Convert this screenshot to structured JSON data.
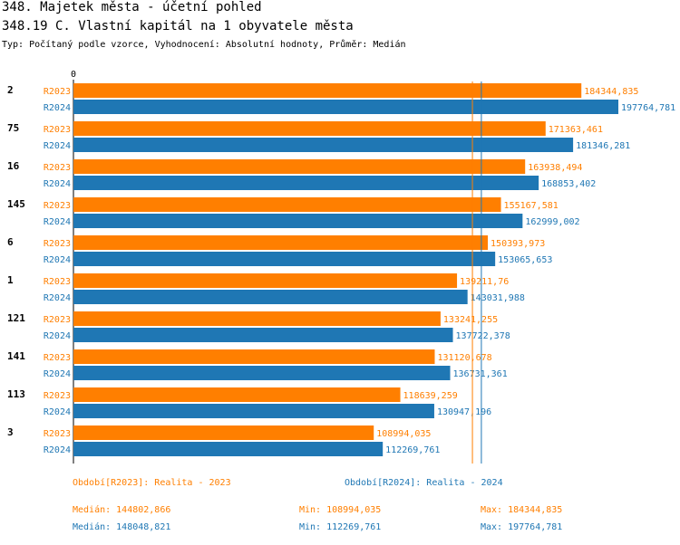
{
  "header": {
    "title": "348. Majetek města - účetní pohled",
    "subtitle": "348.19 C. Vlastní kapitál na 1 obyvatele města",
    "type_line": "Typ: Počítaný podle vzorce, Vyhodnocení: Absolutní hodnoty, Průměr: Medián"
  },
  "colors": {
    "R2023": "#ff7f00",
    "R2024": "#1f77b4"
  },
  "chart_data": {
    "type": "bar",
    "orientation": "horizontal",
    "x_tick_labels": [
      "0"
    ],
    "xlim": [
      0,
      200000
    ],
    "categories": [
      "2",
      "75",
      "16",
      "145",
      "6",
      "1",
      "121",
      "141",
      "113",
      "3"
    ],
    "series": [
      {
        "name": "R2023",
        "values": [
          184344.835,
          171363.461,
          163938.494,
          155167.581,
          150393.973,
          139211.76,
          133241.255,
          131120.678,
          118639.259,
          108994.035
        ],
        "labels": [
          "184344,835",
          "171363,461",
          "163938,494",
          "155167,581",
          "150393,973",
          "139211,76",
          "133241,255",
          "131120,678",
          "118639,259",
          "108994,035"
        ]
      },
      {
        "name": "R2024",
        "values": [
          197764.781,
          181346.281,
          168853.402,
          162999.002,
          153065.653,
          143031.988,
          137722.378,
          136731.361,
          130947.196,
          112269.761
        ],
        "labels": [
          "197764,781",
          "181346,281",
          "168853,402",
          "162999,002",
          "153065,653",
          "143031,988",
          "137722,378",
          "136731,361",
          "130947,196",
          "112269,761"
        ]
      }
    ],
    "reference_lines": [
      {
        "series": "R2023",
        "value": 144802.866
      },
      {
        "series": "R2024",
        "value": 148048.821
      }
    ]
  },
  "legend": {
    "r2023": "Období[R2023]: Realita - 2023",
    "r2024": "Období[R2024]: Realita - 2024"
  },
  "stats": {
    "r2023": {
      "median": "Medián: 144802,866",
      "min": "Min: 108994,035",
      "max": "Max: 184344,835"
    },
    "r2024": {
      "median": "Medián: 148048,821",
      "min": "Min: 112269,761",
      "max": "Max: 197764,781"
    }
  }
}
